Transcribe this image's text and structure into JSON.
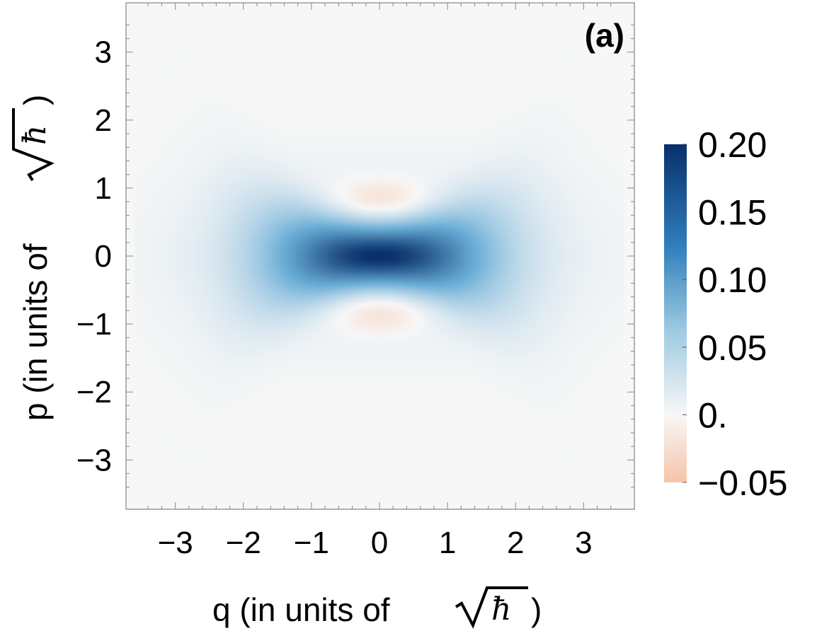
{
  "chart_data": {
    "type": "heatmap",
    "panel_label": "(a)",
    "xlabel": "q (in units of",
    "ylabel": "p (in units of",
    "axis_unit_symbol": "ħ",
    "xlim": [
      -3.6,
      3.6
    ],
    "ylim": [
      -3.6,
      3.6
    ],
    "x_ticks": [
      -3,
      -2,
      -1,
      0,
      1,
      2,
      3
    ],
    "y_ticks": [
      -3,
      -2,
      -1,
      0,
      1,
      2,
      3
    ],
    "x_tick_labels": [
      "−3",
      "−2",
      "−1",
      "0",
      "1",
      "2",
      "3"
    ],
    "y_tick_labels": [
      "−3",
      "−2",
      "−1",
      "0",
      "1",
      "2",
      "3"
    ],
    "colorbar": {
      "min": -0.05,
      "max": 0.2,
      "ticks": [
        0.2,
        0.15,
        0.1,
        0.05,
        0.0,
        -0.05
      ],
      "tick_labels": [
        "0.20",
        "0.15",
        "0.10",
        "0.05",
        "0.",
        "−0.05"
      ],
      "colors": [
        "#f6c4a8",
        "#f7f7f7",
        "#6aaed6",
        "#08306b"
      ]
    },
    "features": [
      {
        "kind": "positive_lobe",
        "center_q": 0,
        "center_p": 0,
        "peak": 0.2,
        "extent_q": 2.4,
        "extent_p": 1.1
      },
      {
        "kind": "negative_lobe",
        "center_q": 0,
        "center_p": 0.85,
        "peak": -0.03
      },
      {
        "kind": "negative_lobe",
        "center_q": 0,
        "center_p": -0.85,
        "peak": -0.03
      }
    ],
    "grid": false
  }
}
